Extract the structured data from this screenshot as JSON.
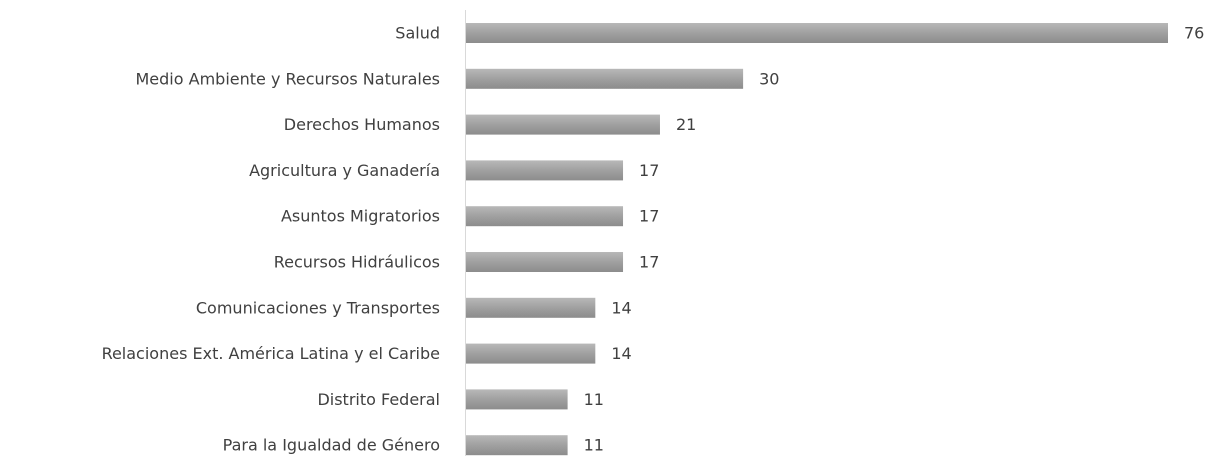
{
  "chart_data": {
    "type": "bar",
    "orientation": "horizontal",
    "categories": [
      "Salud",
      "Medio Ambiente y Recursos Naturales",
      "Derechos Humanos",
      "Agricultura y Ganadería",
      "Asuntos Migratorios",
      "Recursos Hidráulicos",
      "Comunicaciones y Transportes",
      "Relaciones Ext. América Latina y el Caribe",
      "Distrito Federal",
      "Para la Igualdad de Género"
    ],
    "values": [
      76,
      30,
      21,
      17,
      17,
      17,
      14,
      14,
      11,
      11
    ],
    "color": "#a5a5a5"
  }
}
